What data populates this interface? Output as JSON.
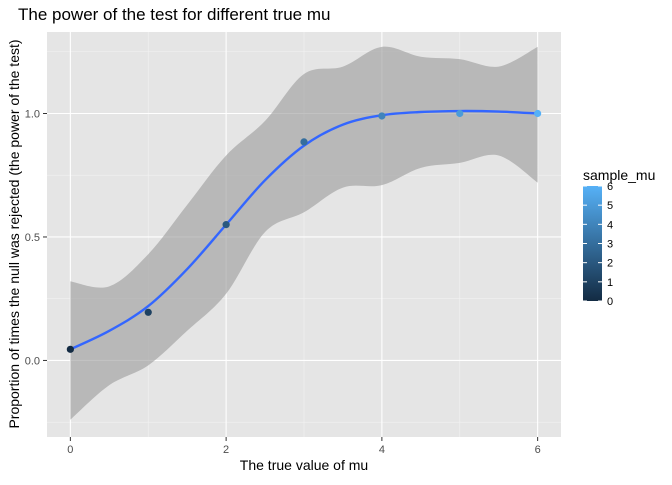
{
  "chart_data": {
    "type": "scatter",
    "title": "The power of the test for different true mu",
    "xlabel": "The true value of mu",
    "ylabel": "Proportion of times the null was rejected (the power of the test)",
    "xlim": [
      -0.3,
      6.3
    ],
    "ylim": [
      -0.31,
      1.33
    ],
    "x_ticks": [
      0,
      2,
      4,
      6
    ],
    "x_tick_labels": [
      "0",
      "2",
      "4",
      "6"
    ],
    "y_ticks": [
      0.0,
      0.5,
      1.0
    ],
    "y_tick_labels": [
      "0.0",
      "0.5",
      "1.0"
    ],
    "grid": true,
    "points": [
      {
        "x": 0,
        "y": 0.045,
        "sample_mu": 0
      },
      {
        "x": 1,
        "y": 0.195,
        "sample_mu": 1
      },
      {
        "x": 2,
        "y": 0.55,
        "sample_mu": 2
      },
      {
        "x": 3,
        "y": 0.885,
        "sample_mu": 3
      },
      {
        "x": 4,
        "y": 0.99,
        "sample_mu": 4
      },
      {
        "x": 5,
        "y": 1.0,
        "sample_mu": 5
      },
      {
        "x": 6,
        "y": 1.0,
        "sample_mu": 6
      }
    ],
    "smooth": {
      "x": [
        0,
        0.5,
        1,
        1.5,
        2,
        2.5,
        3,
        3.5,
        4,
        4.5,
        5,
        5.5,
        6
      ],
      "y": [
        0.045,
        0.12,
        0.22,
        0.37,
        0.55,
        0.73,
        0.87,
        0.955,
        0.993,
        1.006,
        1.01,
        1.008,
        1.0
      ],
      "lower": [
        -0.24,
        -0.1,
        -0.02,
        0.12,
        0.27,
        0.52,
        0.6,
        0.7,
        0.71,
        0.78,
        0.8,
        0.83,
        0.72
      ],
      "upper": [
        0.32,
        0.3,
        0.43,
        0.63,
        0.83,
        0.97,
        1.16,
        1.19,
        1.27,
        1.23,
        1.22,
        1.19,
        1.27
      ]
    },
    "legend": {
      "title": "sample_mu",
      "position": "right",
      "min": 0,
      "max": 6,
      "labels": [
        "6",
        "5",
        "4",
        "3",
        "2",
        "1",
        "0"
      ],
      "color_low": "#132B43",
      "color_high": "#56B1F7"
    },
    "colors": {
      "panel": "#e5e5e5",
      "grid_major": "#ffffff",
      "ribbon": "#999999",
      "line": "#3366ff"
    }
  }
}
